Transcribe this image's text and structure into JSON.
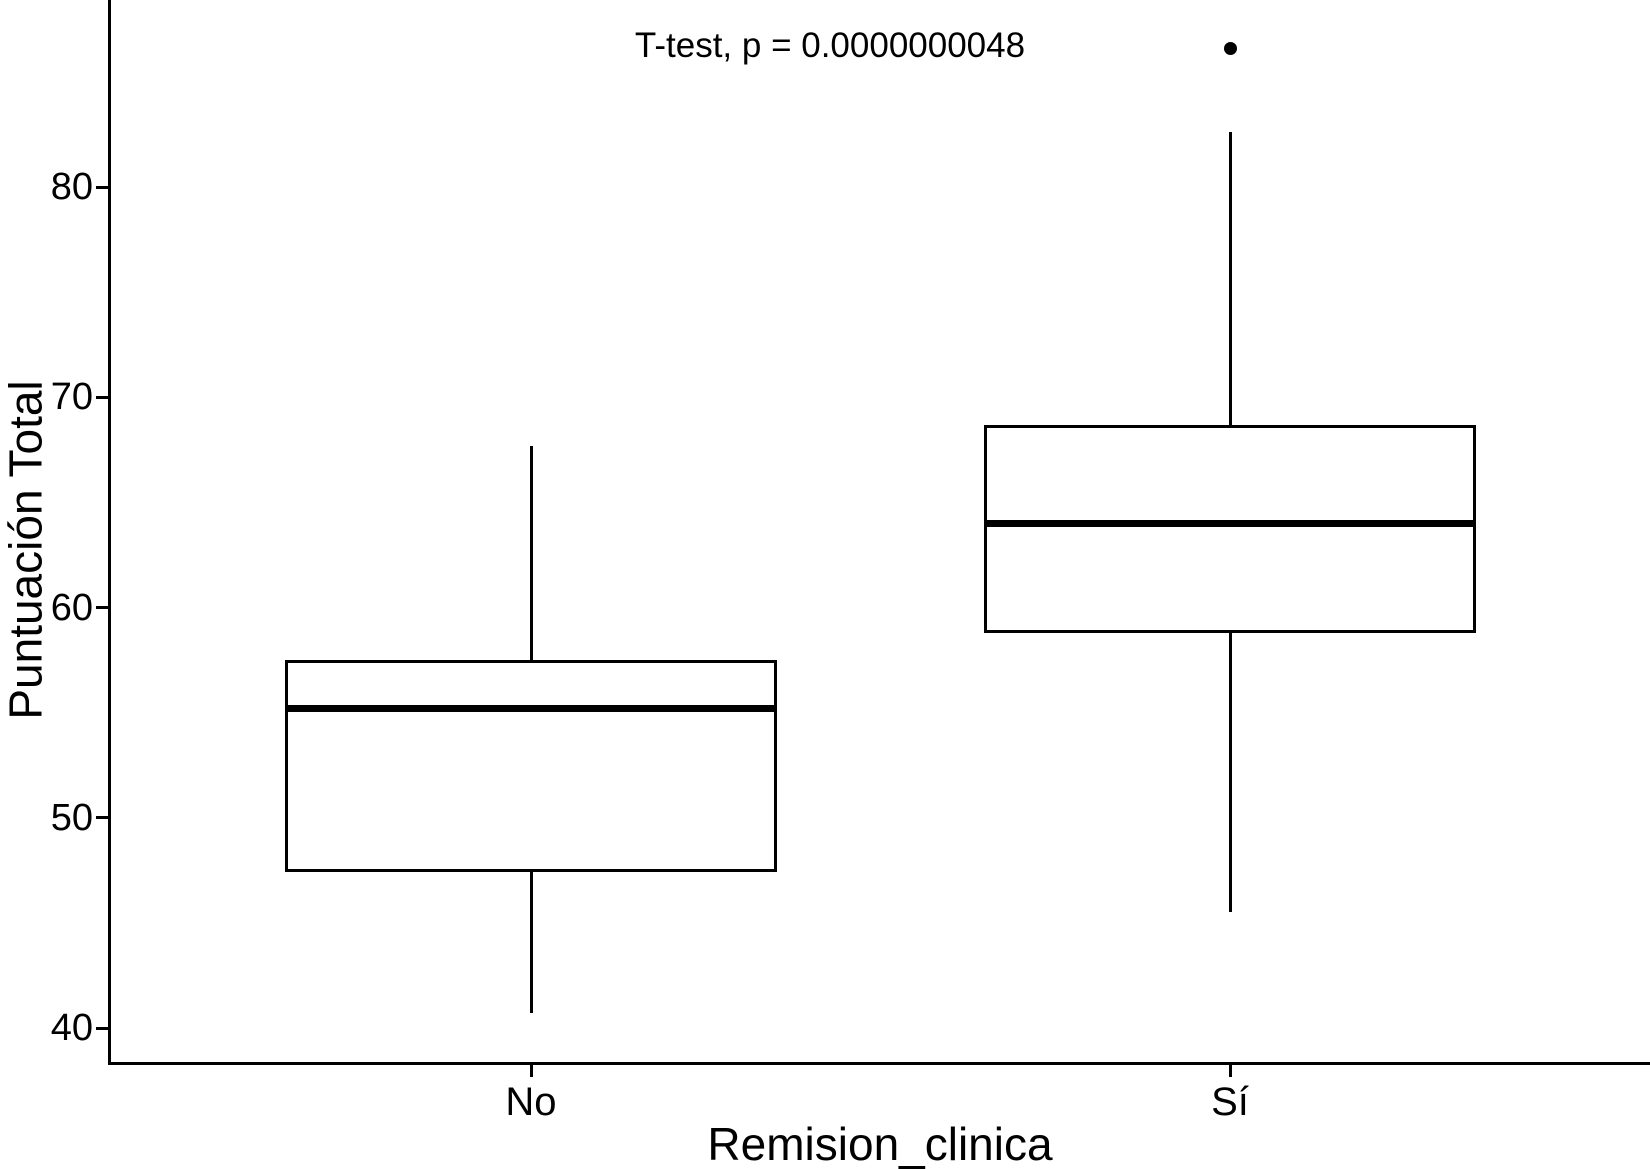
{
  "chart_data": {
    "type": "boxplot",
    "title": "",
    "xlabel": "Remision_clinica",
    "ylabel": "Puntuación Total",
    "annotation": "T-test, p = 0.0000000048",
    "categories": [
      "No",
      "Sí"
    ],
    "y_ticks": [
      40,
      50,
      60,
      70,
      80
    ],
    "ylim": [
      38.4,
      88.9
    ],
    "grid": "off",
    "legend": "none",
    "colors": {
      "stroke": "#000000",
      "fill": "#ffffff",
      "background": "#ffffff"
    },
    "series": [
      {
        "name": "No",
        "min": 40.7,
        "q1": 47.4,
        "median": 55.2,
        "q3": 57.5,
        "max": 67.7,
        "outliers": []
      },
      {
        "name": "Sí",
        "min": 45.5,
        "q1": 58.8,
        "median": 64.0,
        "q3": 68.7,
        "max": 82.6,
        "outliers": [
          86.6
        ]
      }
    ]
  }
}
